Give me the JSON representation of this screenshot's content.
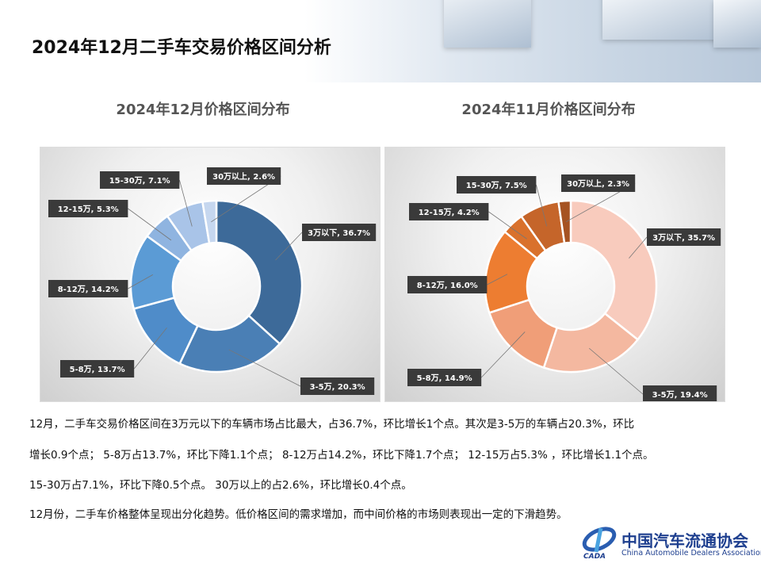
{
  "header": {
    "title": "2024年12月二手车交易价格区间分析"
  },
  "charts_titles": [
    "2024年12月价格区间分布",
    "2024年11月价格区间分布"
  ],
  "chart_data": [
    {
      "type": "pie",
      "donut": true,
      "title": "2024年12月价格区间分布",
      "categories": [
        "3万以下",
        "3-5万",
        "5-8万",
        "8-12万",
        "12-15万",
        "15-30万",
        "30万以上"
      ],
      "values": [
        36.7,
        20.3,
        13.7,
        14.2,
        5.3,
        7.1,
        2.6
      ],
      "colors": [
        "#3d6a99",
        "#4a7fb5",
        "#4f8cc9",
        "#5b9bd5",
        "#8fb4e0",
        "#a9c4e8",
        "#c6d7ef"
      ]
    },
    {
      "type": "pie",
      "donut": true,
      "title": "2024年11月价格区间分布",
      "categories": [
        "3万以下",
        "3-5万",
        "5-8万",
        "8-12万",
        "12-15万",
        "15-30万",
        "30万以上"
      ],
      "values": [
        35.7,
        19.4,
        14.9,
        16.0,
        4.2,
        7.5,
        2.3
      ],
      "colors": [
        "#f8cbbd",
        "#f4b8a0",
        "#f09e78",
        "#ed7d31",
        "#d9712c",
        "#c5652a",
        "#a65322"
      ]
    }
  ],
  "paragraphs": [
    "12月，二手车交易价格区间在3万元以下的车辆市场占比最大，占36.7%，环比增长1个点。其次是3-5万的车辆占20.3%，环比",
    "增长0.9个点；  5-8万占13.7%，环比下降1.1个点；  8-12万占14.2%，环比下降1.7个点；  12-15万占5.3% ，环比增长1.1个点。",
    "15-30万占7.1%，环比下降0.5个点。 30万以上的占2.6%，环比增长0.4个点。",
    "12月份，二手车价格整体呈现出分化趋势。低价格区间的需求增加，而中间价格的市场则表现出一定的下滑趋势。"
  ],
  "logo": {
    "cn": "中国汽车流通协会",
    "en": "China Automobile Dealers Association",
    "mark": "CADA"
  }
}
